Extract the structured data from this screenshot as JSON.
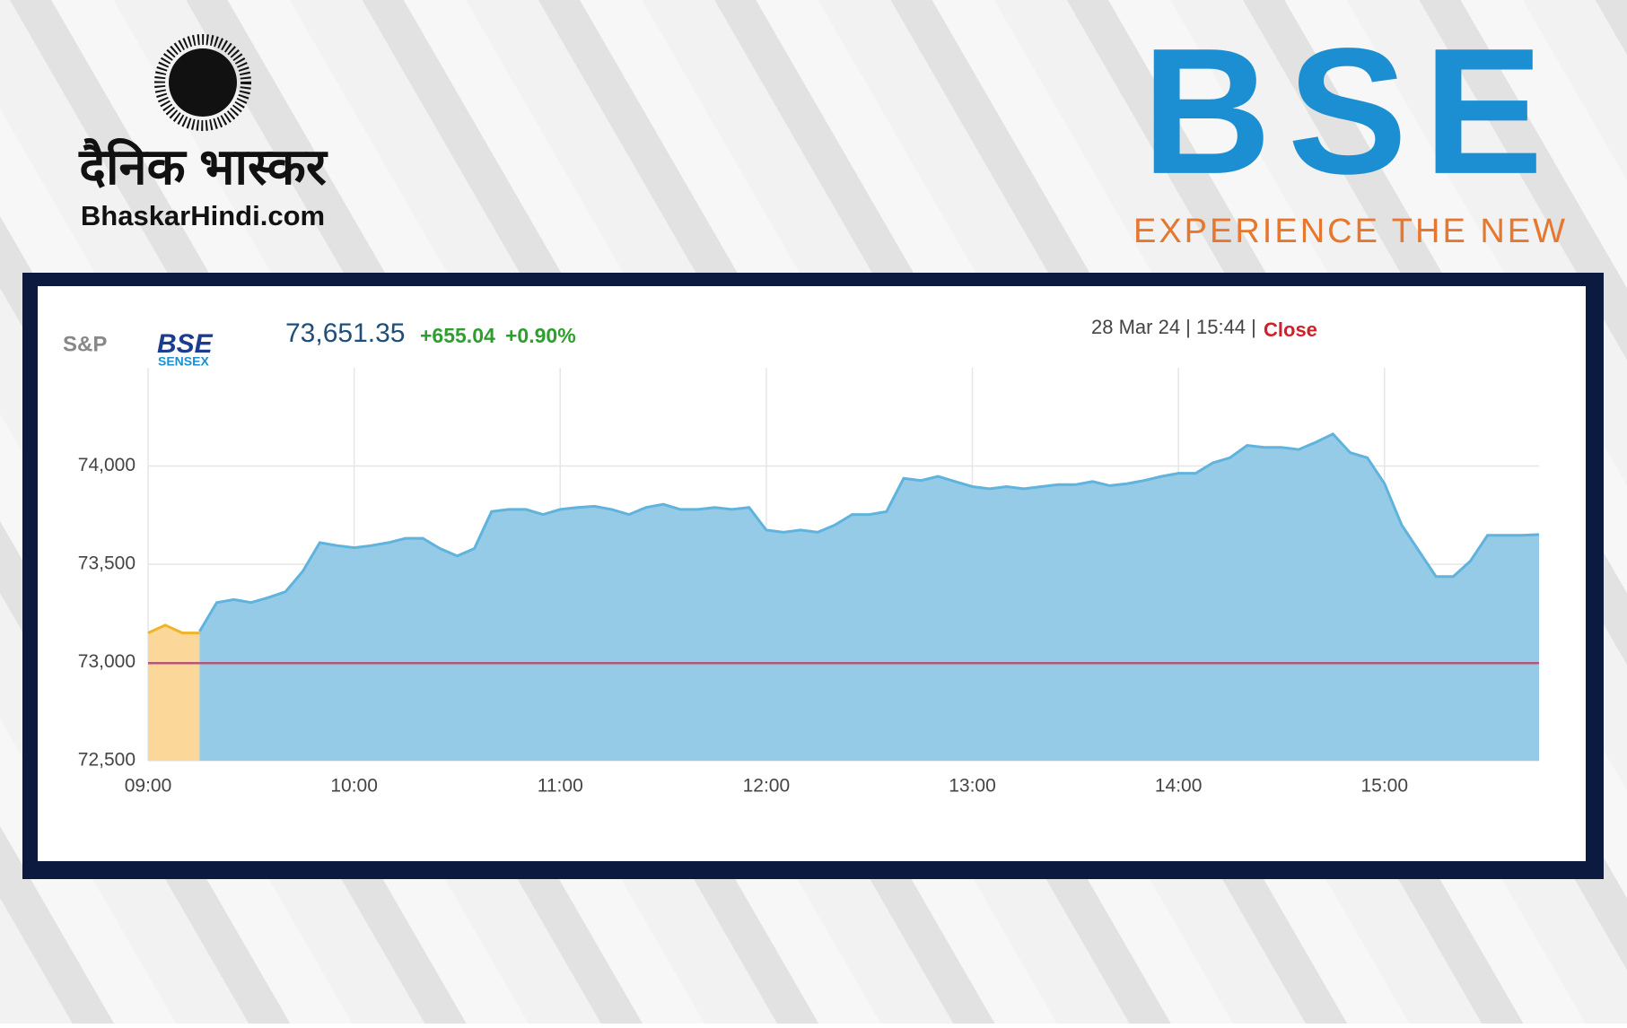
{
  "branding": {
    "publisher_name": "दैनिक भास्कर",
    "publisher_site": "BhaskarHindi.com",
    "exchange_logo": "BSE",
    "exchange_tagline": "EXPERIENCE THE NEW"
  },
  "widget": {
    "index_brand": "S&P",
    "index_logo": "BSE",
    "index_name": "SENSEX",
    "price": "73,651.35",
    "change": "+655.04",
    "change_percent": "+0.90%",
    "timestamp": "28 Mar 24 | 15:44 |",
    "status": "Close"
  },
  "chart_data": {
    "type": "area",
    "x": [
      "09:00",
      "09:05",
      "09:10",
      "09:15",
      "09:20",
      "09:25",
      "09:30",
      "09:35",
      "09:40",
      "09:45",
      "09:50",
      "09:55",
      "10:00",
      "10:05",
      "10:10",
      "10:15",
      "10:20",
      "10:25",
      "10:30",
      "10:35",
      "10:40",
      "10:45",
      "10:50",
      "10:55",
      "11:00",
      "11:05",
      "11:10",
      "11:15",
      "11:20",
      "11:25",
      "11:30",
      "11:35",
      "11:40",
      "11:45",
      "11:50",
      "11:55",
      "12:00",
      "12:05",
      "12:10",
      "12:15",
      "12:20",
      "12:25",
      "12:30",
      "12:35",
      "12:40",
      "12:45",
      "12:50",
      "12:55",
      "13:00",
      "13:05",
      "13:10",
      "13:15",
      "13:20",
      "13:25",
      "13:30",
      "13:35",
      "13:40",
      "13:45",
      "13:50",
      "13:55",
      "14:00",
      "14:05",
      "14:10",
      "14:15",
      "14:20",
      "14:25",
      "14:30",
      "14:35",
      "14:40",
      "14:45",
      "14:50",
      "14:55",
      "15:00",
      "15:05",
      "15:10",
      "15:15",
      "15:20",
      "15:25",
      "15:30",
      "15:35",
      "15:40",
      "15:45"
    ],
    "series": [
      {
        "color": "#f0b429",
        "fill": "#fbd79a",
        "values": [
          73150,
          73190,
          73150,
          73150,
          null,
          null,
          null,
          null,
          null,
          null,
          null,
          null,
          null,
          null,
          null,
          null,
          null,
          null,
          null,
          null,
          null,
          null,
          null,
          null,
          null,
          null,
          null,
          null,
          null,
          null,
          null,
          null,
          null,
          null,
          null,
          null,
          null,
          null,
          null,
          null,
          null,
          null,
          null,
          null,
          null,
          null,
          null,
          null,
          null,
          null,
          null,
          null,
          null,
          null,
          null,
          null,
          null,
          null,
          null,
          null,
          null,
          null,
          null,
          null,
          null,
          null,
          null,
          null,
          null,
          null,
          null,
          null,
          null,
          null,
          null,
          null,
          null,
          null,
          null,
          null,
          null,
          null
        ]
      },
      {
        "color": "#5fb3dc",
        "fill": "#95cbe6",
        "values": [
          null,
          null,
          null,
          73158,
          73305,
          73320,
          73305,
          73330,
          73360,
          73463,
          73610,
          73595,
          73584,
          73595,
          73610,
          73632,
          73632,
          73580,
          73542,
          73580,
          73768,
          73779,
          73779,
          73753,
          73779,
          73789,
          73795,
          73779,
          73753,
          73789,
          73805,
          73779,
          73779,
          73789,
          73779,
          73789,
          73674,
          73663,
          73674,
          73663,
          73700,
          73753,
          73753,
          73768,
          73937,
          73926,
          73947,
          73921,
          73895,
          73884,
          73895,
          73884,
          73895,
          73905,
          73905,
          73921,
          73900,
          73910,
          73926,
          73947,
          73963,
          73963,
          74016,
          74042,
          74105,
          74095,
          74095,
          74084,
          74121,
          74163,
          74068,
          74042,
          73910,
          73700,
          73568,
          73437,
          73437,
          73516,
          73647,
          73647,
          73647,
          73651
        ]
      }
    ],
    "baseline": 72996.31,
    "baseline_color": "#b5577a",
    "xlim": [
      "09:00",
      "15:45"
    ],
    "xticks": [
      "09:00",
      "10:00",
      "11:00",
      "12:00",
      "13:00",
      "14:00",
      "15:00"
    ],
    "ylim": [
      72500,
      74500
    ],
    "yticks": [
      {
        "value": 72500,
        "label": "72,500"
      },
      {
        "value": 73000,
        "label": "73,000"
      },
      {
        "value": 73500,
        "label": "73,500"
      },
      {
        "value": 74000,
        "label": "74,000"
      }
    ],
    "grid": true
  }
}
